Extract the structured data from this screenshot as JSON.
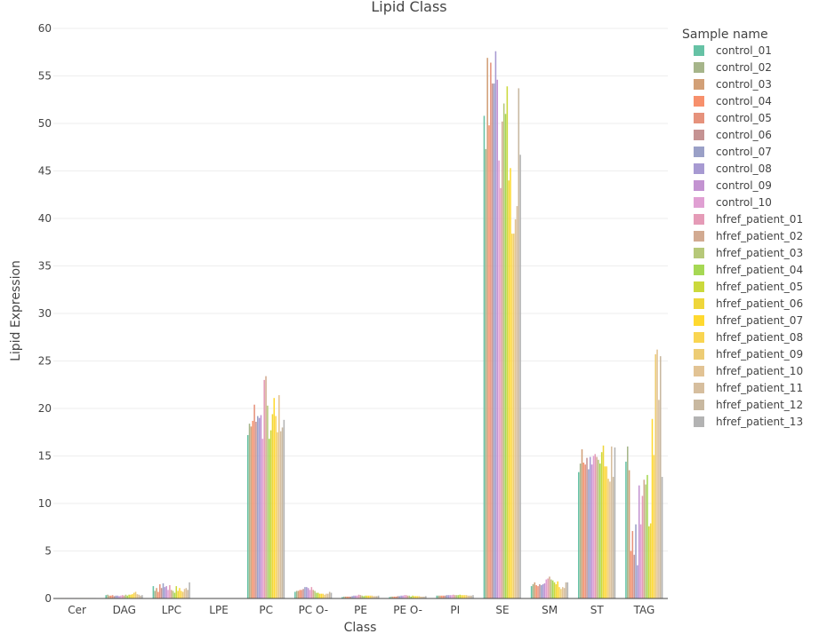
{
  "chart_data": {
    "type": "bar",
    "title": "Lipid Class",
    "xlabel": "Class",
    "ylabel": "Lipid Expression",
    "ylim": [
      0,
      60
    ],
    "yticks": [
      0,
      5,
      10,
      15,
      20,
      25,
      30,
      35,
      40,
      45,
      50,
      55,
      60
    ],
    "grid": true,
    "legend_title": "Sample name",
    "legend_position": "right",
    "categories": [
      "Cer",
      "DAG",
      "LPC",
      "LPE",
      "PC",
      "PC O-",
      "PE",
      "PE O-",
      "PI",
      "SE",
      "SM",
      "ST",
      "TAG"
    ],
    "series": [
      {
        "name": "control_01",
        "color": "#66c2a5",
        "values": [
          0.05,
          0.35,
          1.3,
          0.03,
          17.2,
          0.7,
          0.15,
          0.15,
          0.3,
          50.8,
          1.3,
          13.3,
          14.4
        ]
      },
      {
        "name": "control_02",
        "color": "#a6b58a",
        "values": [
          0.05,
          0.4,
          0.8,
          0.03,
          18.4,
          0.8,
          0.2,
          0.2,
          0.3,
          47.3,
          1.5,
          14.2,
          16.0
        ]
      },
      {
        "name": "control_03",
        "color": "#d2a077",
        "values": [
          0.05,
          0.3,
          1.1,
          0.03,
          18.1,
          0.8,
          0.2,
          0.2,
          0.3,
          56.9,
          1.7,
          15.7,
          13.5
        ]
      },
      {
        "name": "control_04",
        "color": "#f7906c",
        "values": [
          0.05,
          0.3,
          0.7,
          0.03,
          18.7,
          0.9,
          0.2,
          0.2,
          0.3,
          49.8,
          1.4,
          14.3,
          5.0
        ]
      },
      {
        "name": "control_05",
        "color": "#e6927c",
        "values": [
          0.05,
          0.35,
          1.5,
          0.03,
          20.4,
          0.9,
          0.2,
          0.2,
          0.3,
          56.4,
          1.3,
          14.1,
          7.1
        ]
      },
      {
        "name": "control_06",
        "color": "#c59393",
        "values": [
          0.05,
          0.25,
          1.1,
          0.03,
          18.6,
          1.0,
          0.2,
          0.25,
          0.3,
          54.2,
          1.5,
          14.8,
          4.6
        ]
      },
      {
        "name": "control_07",
        "color": "#9aa0c7",
        "values": [
          0.05,
          0.3,
          1.6,
          0.03,
          19.2,
          1.2,
          0.25,
          0.25,
          0.35,
          54.2,
          1.4,
          13.6,
          7.8
        ]
      },
      {
        "name": "control_08",
        "color": "#a79ad2",
        "values": [
          0.05,
          0.3,
          1.2,
          0.03,
          19.0,
          1.2,
          0.3,
          0.3,
          0.35,
          57.6,
          1.5,
          14.9,
          3.5
        ]
      },
      {
        "name": "control_09",
        "color": "#c393d1",
        "values": [
          0.05,
          0.25,
          1.3,
          0.03,
          19.3,
          1.1,
          0.3,
          0.3,
          0.35,
          54.6,
          1.6,
          14.1,
          11.9
        ]
      },
      {
        "name": "control_10",
        "color": "#e0a0d3",
        "values": [
          0.05,
          0.3,
          0.9,
          0.03,
          16.8,
          0.9,
          0.3,
          0.35,
          0.35,
          46.1,
          2.0,
          15.0,
          7.8
        ]
      },
      {
        "name": "hfref_patient_01",
        "color": "#e59bb7",
        "values": [
          0.05,
          0.35,
          1.4,
          0.03,
          23.0,
          1.2,
          0.4,
          0.35,
          0.4,
          43.2,
          2.1,
          15.2,
          10.8
        ]
      },
      {
        "name": "hfref_patient_02",
        "color": "#d2aa91",
        "values": [
          0.05,
          0.3,
          0.9,
          0.03,
          23.4,
          0.9,
          0.35,
          0.3,
          0.35,
          50.2,
          2.3,
          14.9,
          12.5
        ]
      },
      {
        "name": "hfref_patient_03",
        "color": "#b6c879",
        "values": [
          0.05,
          0.4,
          0.8,
          0.03,
          20.3,
          0.8,
          0.3,
          0.3,
          0.35,
          52.1,
          2.0,
          14.6,
          12.0
        ]
      },
      {
        "name": "hfref_patient_04",
        "color": "#a6d854",
        "values": [
          0.05,
          0.3,
          0.6,
          0.03,
          16.8,
          0.6,
          0.25,
          0.2,
          0.35,
          51.0,
          1.9,
          14.2,
          13.0
        ]
      },
      {
        "name": "hfref_patient_05",
        "color": "#cbd93c",
        "values": [
          0.05,
          0.4,
          1.3,
          0.03,
          17.7,
          0.6,
          0.3,
          0.3,
          0.4,
          53.9,
          1.7,
          15.4,
          7.6
        ]
      },
      {
        "name": "hfref_patient_06",
        "color": "#efd63a",
        "values": [
          0.05,
          0.4,
          0.8,
          0.03,
          19.4,
          0.5,
          0.3,
          0.25,
          0.35,
          44.0,
          1.5,
          16.1,
          7.9
        ]
      },
      {
        "name": "hfref_patient_07",
        "color": "#ffd92f",
        "values": [
          0.05,
          0.45,
          1.1,
          0.03,
          21.1,
          0.5,
          0.3,
          0.25,
          0.35,
          45.3,
          1.8,
          13.9,
          18.9
        ]
      },
      {
        "name": "hfref_patient_08",
        "color": "#f9d551",
        "values": [
          0.05,
          0.6,
          0.8,
          0.03,
          19.2,
          0.5,
          0.3,
          0.25,
          0.35,
          38.4,
          1.2,
          13.9,
          15.1
        ]
      },
      {
        "name": "hfref_patient_09",
        "color": "#edcc74",
        "values": [
          0.05,
          0.7,
          0.7,
          0.03,
          17.5,
          0.4,
          0.3,
          0.25,
          0.35,
          38.4,
          1.0,
          12.6,
          25.7
        ]
      },
      {
        "name": "hfref_patient_10",
        "color": "#e2c394",
        "values": [
          0.05,
          0.45,
          1.0,
          0.03,
          21.4,
          0.5,
          0.25,
          0.2,
          0.3,
          39.9,
          1.2,
          12.3,
          26.2
        ]
      },
      {
        "name": "hfref_patient_11",
        "color": "#d6be9e",
        "values": [
          0.05,
          0.4,
          1.1,
          0.03,
          17.6,
          0.5,
          0.25,
          0.2,
          0.3,
          41.3,
          1.1,
          16.0,
          20.9
        ]
      },
      {
        "name": "hfref_patient_12",
        "color": "#c8b8a0",
        "values": [
          0.05,
          0.3,
          0.9,
          0.03,
          18.0,
          0.7,
          0.25,
          0.2,
          0.3,
          53.7,
          1.7,
          12.8,
          25.5
        ]
      },
      {
        "name": "hfref_patient_13",
        "color": "#b3b3b3",
        "values": [
          0.05,
          0.35,
          1.7,
          0.03,
          18.8,
          0.6,
          0.3,
          0.25,
          0.35,
          46.7,
          1.7,
          15.9,
          12.8
        ]
      }
    ]
  }
}
